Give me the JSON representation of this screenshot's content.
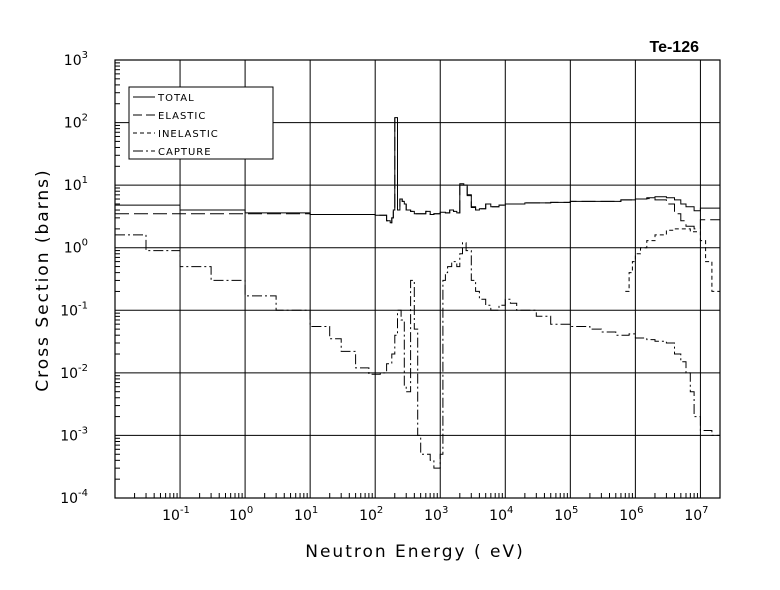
{
  "chart_data": {
    "type": "line",
    "title": "Te-126",
    "xlabel": "Neutron Energy ( eV)",
    "ylabel": "Cross Section (barns)",
    "xscale": "log",
    "yscale": "log",
    "xlim": [
      0.01,
      20000000
    ],
    "ylim": [
      0.0001,
      1000
    ],
    "grid": true,
    "legend_position": "top-left",
    "x_ticks": [
      {
        "base": "10",
        "exp": "-1",
        "value": 0.1
      },
      {
        "base": "10",
        "exp": "0",
        "value": 1
      },
      {
        "base": "10",
        "exp": "1",
        "value": 10
      },
      {
        "base": "10",
        "exp": "2",
        "value": 100
      },
      {
        "base": "10",
        "exp": "3",
        "value": 1000
      },
      {
        "base": "10",
        "exp": "4",
        "value": 10000
      },
      {
        "base": "10",
        "exp": "5",
        "value": 100000
      },
      {
        "base": "10",
        "exp": "6",
        "value": 1000000
      },
      {
        "base": "10",
        "exp": "7",
        "value": 10000000
      }
    ],
    "y_ticks": [
      {
        "base": "10",
        "exp": "3",
        "value": 1000
      },
      {
        "base": "10",
        "exp": "2",
        "value": 100
      },
      {
        "base": "10",
        "exp": "1",
        "value": 10
      },
      {
        "base": "10",
        "exp": "0",
        "value": 1
      },
      {
        "base": "10",
        "exp": "-1",
        "value": 0.1
      },
      {
        "base": "10",
        "exp": "-2",
        "value": 0.01
      },
      {
        "base": "10",
        "exp": "-3",
        "value": 0.001
      },
      {
        "base": "10",
        "exp": "-4",
        "value": 0.0001
      }
    ],
    "series": [
      {
        "name": "TOTAL",
        "dash": "solid",
        "x": [
          0.01,
          0.1,
          1,
          10,
          100,
          150,
          170,
          180,
          190,
          200,
          210,
          220,
          240,
          260,
          280,
          300,
          350,
          400,
          500,
          600,
          700,
          800,
          1000,
          1200,
          1400,
          1600,
          1800,
          2000,
          2300,
          2600,
          3000,
          3500,
          4000,
          5000,
          6000,
          8000,
          10000,
          20000,
          50000,
          100000,
          300000,
          600000,
          1000000,
          1500000,
          2000000,
          3000000,
          4000000,
          5000000,
          6000000,
          8000000,
          10000000,
          20000000
        ],
        "y": [
          4.8,
          4.0,
          3.6,
          3.4,
          3.3,
          2.7,
          2.5,
          3.0,
          4.0,
          120,
          120,
          4.0,
          6.0,
          5.5,
          5.0,
          4.0,
          3.8,
          3.5,
          3.5,
          3.8,
          3.4,
          3.5,
          3.7,
          3.6,
          4.0,
          3.8,
          3.6,
          10.5,
          10.0,
          7.0,
          4.5,
          4.0,
          4.2,
          5.0,
          4.5,
          4.8,
          5.0,
          5.2,
          5.3,
          5.5,
          5.5,
          5.8,
          6.0,
          6.3,
          6.5,
          6.3,
          5.8,
          5.0,
          4.5,
          3.9,
          4.3,
          4.9
        ]
      },
      {
        "name": "ELASTIC",
        "dash": "long-dash",
        "x": [
          0.01,
          0.1,
          1,
          10,
          100,
          150,
          170,
          180,
          190,
          200,
          210,
          220,
          240,
          260,
          280,
          300,
          350,
          400,
          500,
          600,
          700,
          800,
          1000,
          1200,
          1400,
          1600,
          1800,
          2000,
          2300,
          2600,
          3000,
          3500,
          4000,
          5000,
          6000,
          8000,
          10000,
          20000,
          50000,
          100000,
          300000,
          600000,
          1000000,
          1500000,
          2000000,
          3000000,
          4000000,
          5000000,
          6000000,
          8000000,
          10000000,
          20000000
        ],
        "y": [
          3.5,
          3.5,
          3.5,
          3.4,
          3.3,
          2.7,
          2.5,
          3.0,
          4.0,
          118,
          118,
          4.0,
          6.0,
          5.5,
          5.0,
          4.0,
          3.8,
          3.5,
          3.5,
          3.8,
          3.4,
          3.5,
          3.7,
          3.6,
          4.0,
          3.8,
          3.6,
          10.0,
          9.5,
          6.8,
          4.4,
          4.0,
          4.2,
          5.0,
          4.5,
          4.8,
          5.0,
          5.2,
          5.3,
          5.5,
          5.5,
          5.8,
          6.0,
          6.1,
          5.8,
          5.0,
          3.5,
          2.7,
          2.2,
          2.0,
          2.8,
          3.7
        ]
      },
      {
        "name": "INELASTIC",
        "dash": "short-dash",
        "x": [
          700000,
          800000,
          900000,
          1000000,
          1200000,
          1500000,
          2000000,
          3000000,
          4000000,
          5000000,
          7000000,
          10000000,
          12000000,
          15000000,
          20000000
        ],
        "y": [
          0.2,
          0.4,
          0.6,
          0.8,
          1.0,
          1.3,
          1.6,
          1.9,
          2.0,
          2.0,
          1.8,
          1.3,
          0.6,
          0.2,
          0.08
        ]
      },
      {
        "name": "CAPTURE",
        "dash": "dash-dot",
        "x": [
          0.01,
          0.03,
          0.1,
          0.3,
          1,
          3,
          10,
          20,
          30,
          50,
          80,
          100,
          120,
          150,
          180,
          200,
          220,
          250,
          280,
          300,
          350,
          400,
          450,
          500,
          600,
          700,
          800,
          900,
          1000,
          1100,
          1200,
          1300,
          1500,
          1800,
          2000,
          2200,
          2500,
          3000,
          3500,
          4000,
          5000,
          6000,
          8000,
          10000,
          12000,
          15000,
          20000,
          30000,
          50000,
          100000,
          200000,
          300000,
          500000,
          800000,
          1000000,
          1500000,
          2000000,
          3000000,
          4000000,
          5000000,
          6000000,
          7000000,
          8000000,
          10000000,
          15000000,
          20000000
        ],
        "y": [
          1.6,
          0.9,
          0.5,
          0.3,
          0.17,
          0.1,
          0.055,
          0.035,
          0.022,
          0.012,
          0.0095,
          0.0095,
          0.01,
          0.014,
          0.02,
          0.04,
          0.1,
          0.07,
          0.006,
          0.005,
          0.3,
          0.05,
          0.001,
          0.0005,
          0.0005,
          0.0004,
          0.0003,
          0.0003,
          0.0005,
          0.3,
          0.4,
          0.5,
          0.6,
          0.5,
          0.8,
          1.2,
          0.9,
          0.3,
          0.2,
          0.15,
          0.12,
          0.1,
          0.12,
          0.15,
          0.13,
          0.1,
          0.1,
          0.08,
          0.06,
          0.055,
          0.05,
          0.045,
          0.04,
          0.042,
          0.036,
          0.034,
          0.032,
          0.03,
          0.02,
          0.015,
          0.01,
          0.005,
          0.002,
          0.0012,
          0.001,
          0.00095
        ]
      }
    ]
  }
}
